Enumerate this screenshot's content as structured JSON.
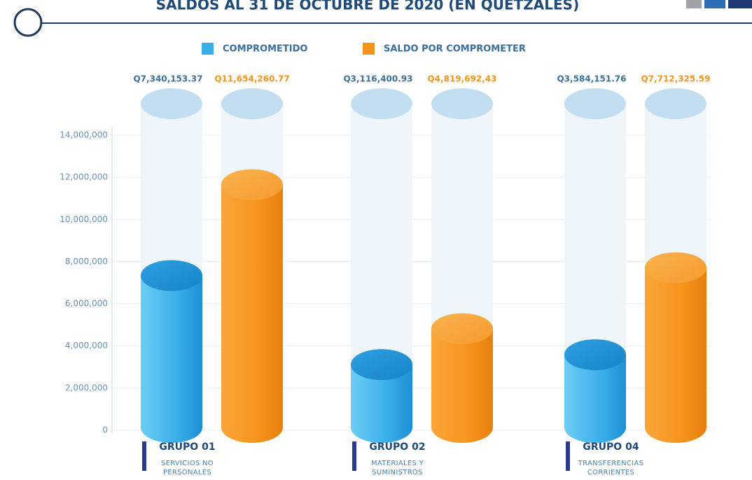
{
  "chart_data": {
    "type": "cylinder_bar",
    "title": "SALDOS AL 31 DE OCTUBRE DE 2020 (EN QUETZALES)",
    "categories": [
      "GRUPO 01",
      "GRUPO 02",
      "GRUPO 04"
    ],
    "category_descriptions": [
      "SERVICIOS NO PERSONALES",
      "MATERIALES Y SUMINISTROS",
      "TRANSFERENCIAS CORRIENTES"
    ],
    "series": [
      {
        "name": "COMPROMETIDO",
        "color": "#3aaee8",
        "values": [
          7340153.37,
          3116400.93,
          3584151.76
        ],
        "value_labels": [
          "Q7,340,153.37",
          "Q3,116,400.93",
          "Q3,584,151.76"
        ]
      },
      {
        "name": "SALDO POR COMPROMETER",
        "color": "#f7941d",
        "values": [
          11654260.77,
          4819692.43,
          7712325.59
        ],
        "value_labels": [
          "Q11,654,260.77",
          "Q4,819,692,43",
          "Q7,712,325.59"
        ]
      }
    ],
    "ylim": [
      0,
      14000000
    ],
    "yticks": [
      0,
      {
        "value": 2000000,
        "label": "2,000,000"
      },
      {
        "value": 4000000,
        "label": "4,000,000"
      },
      {
        "value": 6000000,
        "label": "6,000,000"
      },
      {
        "value": 8000000,
        "label": "8,000,000"
      },
      {
        "value": 10000000,
        "label": "10,000,000"
      },
      {
        "value": 12000000,
        "label": "12,000,000"
      },
      {
        "value": 14000000,
        "label": "14,000,000"
      }
    ],
    "grid": true
  }
}
